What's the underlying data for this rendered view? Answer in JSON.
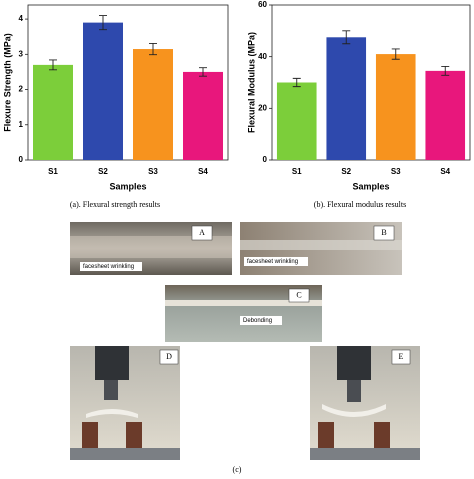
{
  "chart_data": [
    {
      "type": "bar",
      "ylabel": "Flexure Strength (MPa)",
      "xlabel": "Samples",
      "categories": [
        "S1",
        "S2",
        "S3",
        "S4"
      ],
      "values": [
        2.7,
        3.9,
        3.15,
        2.5
      ],
      "errors": [
        0.14,
        0.2,
        0.16,
        0.12
      ],
      "colors": [
        "#7cce3a",
        "#2e49ad",
        "#f7931e",
        "#e8177c"
      ],
      "ylim": [
        0,
        4.4
      ],
      "yticks": [
        0,
        1,
        2,
        3,
        4
      ],
      "caption": "(a). Flexural strength results"
    },
    {
      "type": "bar",
      "ylabel": "Flexural Modulus (MPa)",
      "xlabel": "Samples",
      "categories": [
        "S1",
        "S2",
        "S3",
        "S4"
      ],
      "values": [
        30,
        47.5,
        41,
        34.5
      ],
      "errors": [
        1.6,
        2.5,
        2,
        1.7
      ],
      "colors": [
        "#7cce3a",
        "#2e49ad",
        "#f7931e",
        "#e8177c"
      ],
      "ylim": [
        0,
        60
      ],
      "yticks": [
        0,
        20,
        40,
        60
      ],
      "caption": "(b). Flexural modulus results"
    }
  ],
  "photos": [
    {
      "label": "A",
      "note": "facesheet wrinkling"
    },
    {
      "label": "B",
      "note": "facesheet wrinkling"
    },
    {
      "label": "C",
      "note": "Debonding"
    },
    {
      "label": "D"
    },
    {
      "label": "E"
    }
  ],
  "caption": "(c)"
}
